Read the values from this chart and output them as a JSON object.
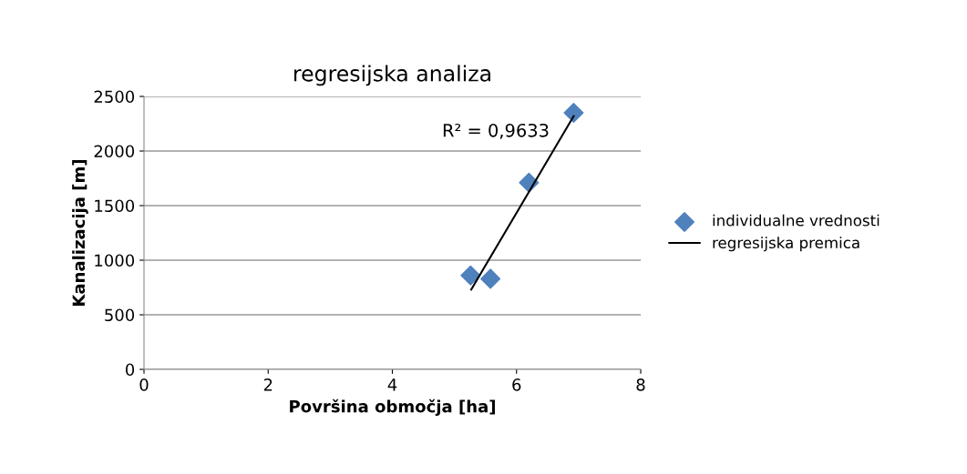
{
  "chart_data": {
    "type": "scatter",
    "title": "regresijska analiza",
    "xlabel": "Površina območja [ha]",
    "ylabel": "Kanalizacija [m]",
    "series": [
      {
        "name": "individualne vrednosti",
        "color": "#4f81bd",
        "marker": "diamond",
        "x": [
          5.26,
          5.58,
          6.2,
          6.92
        ],
        "values": [
          860,
          830,
          1710,
          2350
        ]
      },
      {
        "name": "regresijska premica",
        "type": "line",
        "color": "#000000",
        "marker": "none",
        "line_style": "solid",
        "x": [
          5.27,
          6.92
        ],
        "values": [
          730,
          2320
        ]
      }
    ],
    "annotations": [
      "R² = 0,9633"
    ],
    "xlim": [
      0,
      8
    ],
    "xticks": [
      0,
      2,
      4,
      6,
      8
    ],
    "ylim": [
      0,
      2500
    ],
    "yticks": [
      0,
      500,
      1000,
      1500,
      2000,
      2500
    ],
    "grid": "y",
    "legend": "right"
  }
}
